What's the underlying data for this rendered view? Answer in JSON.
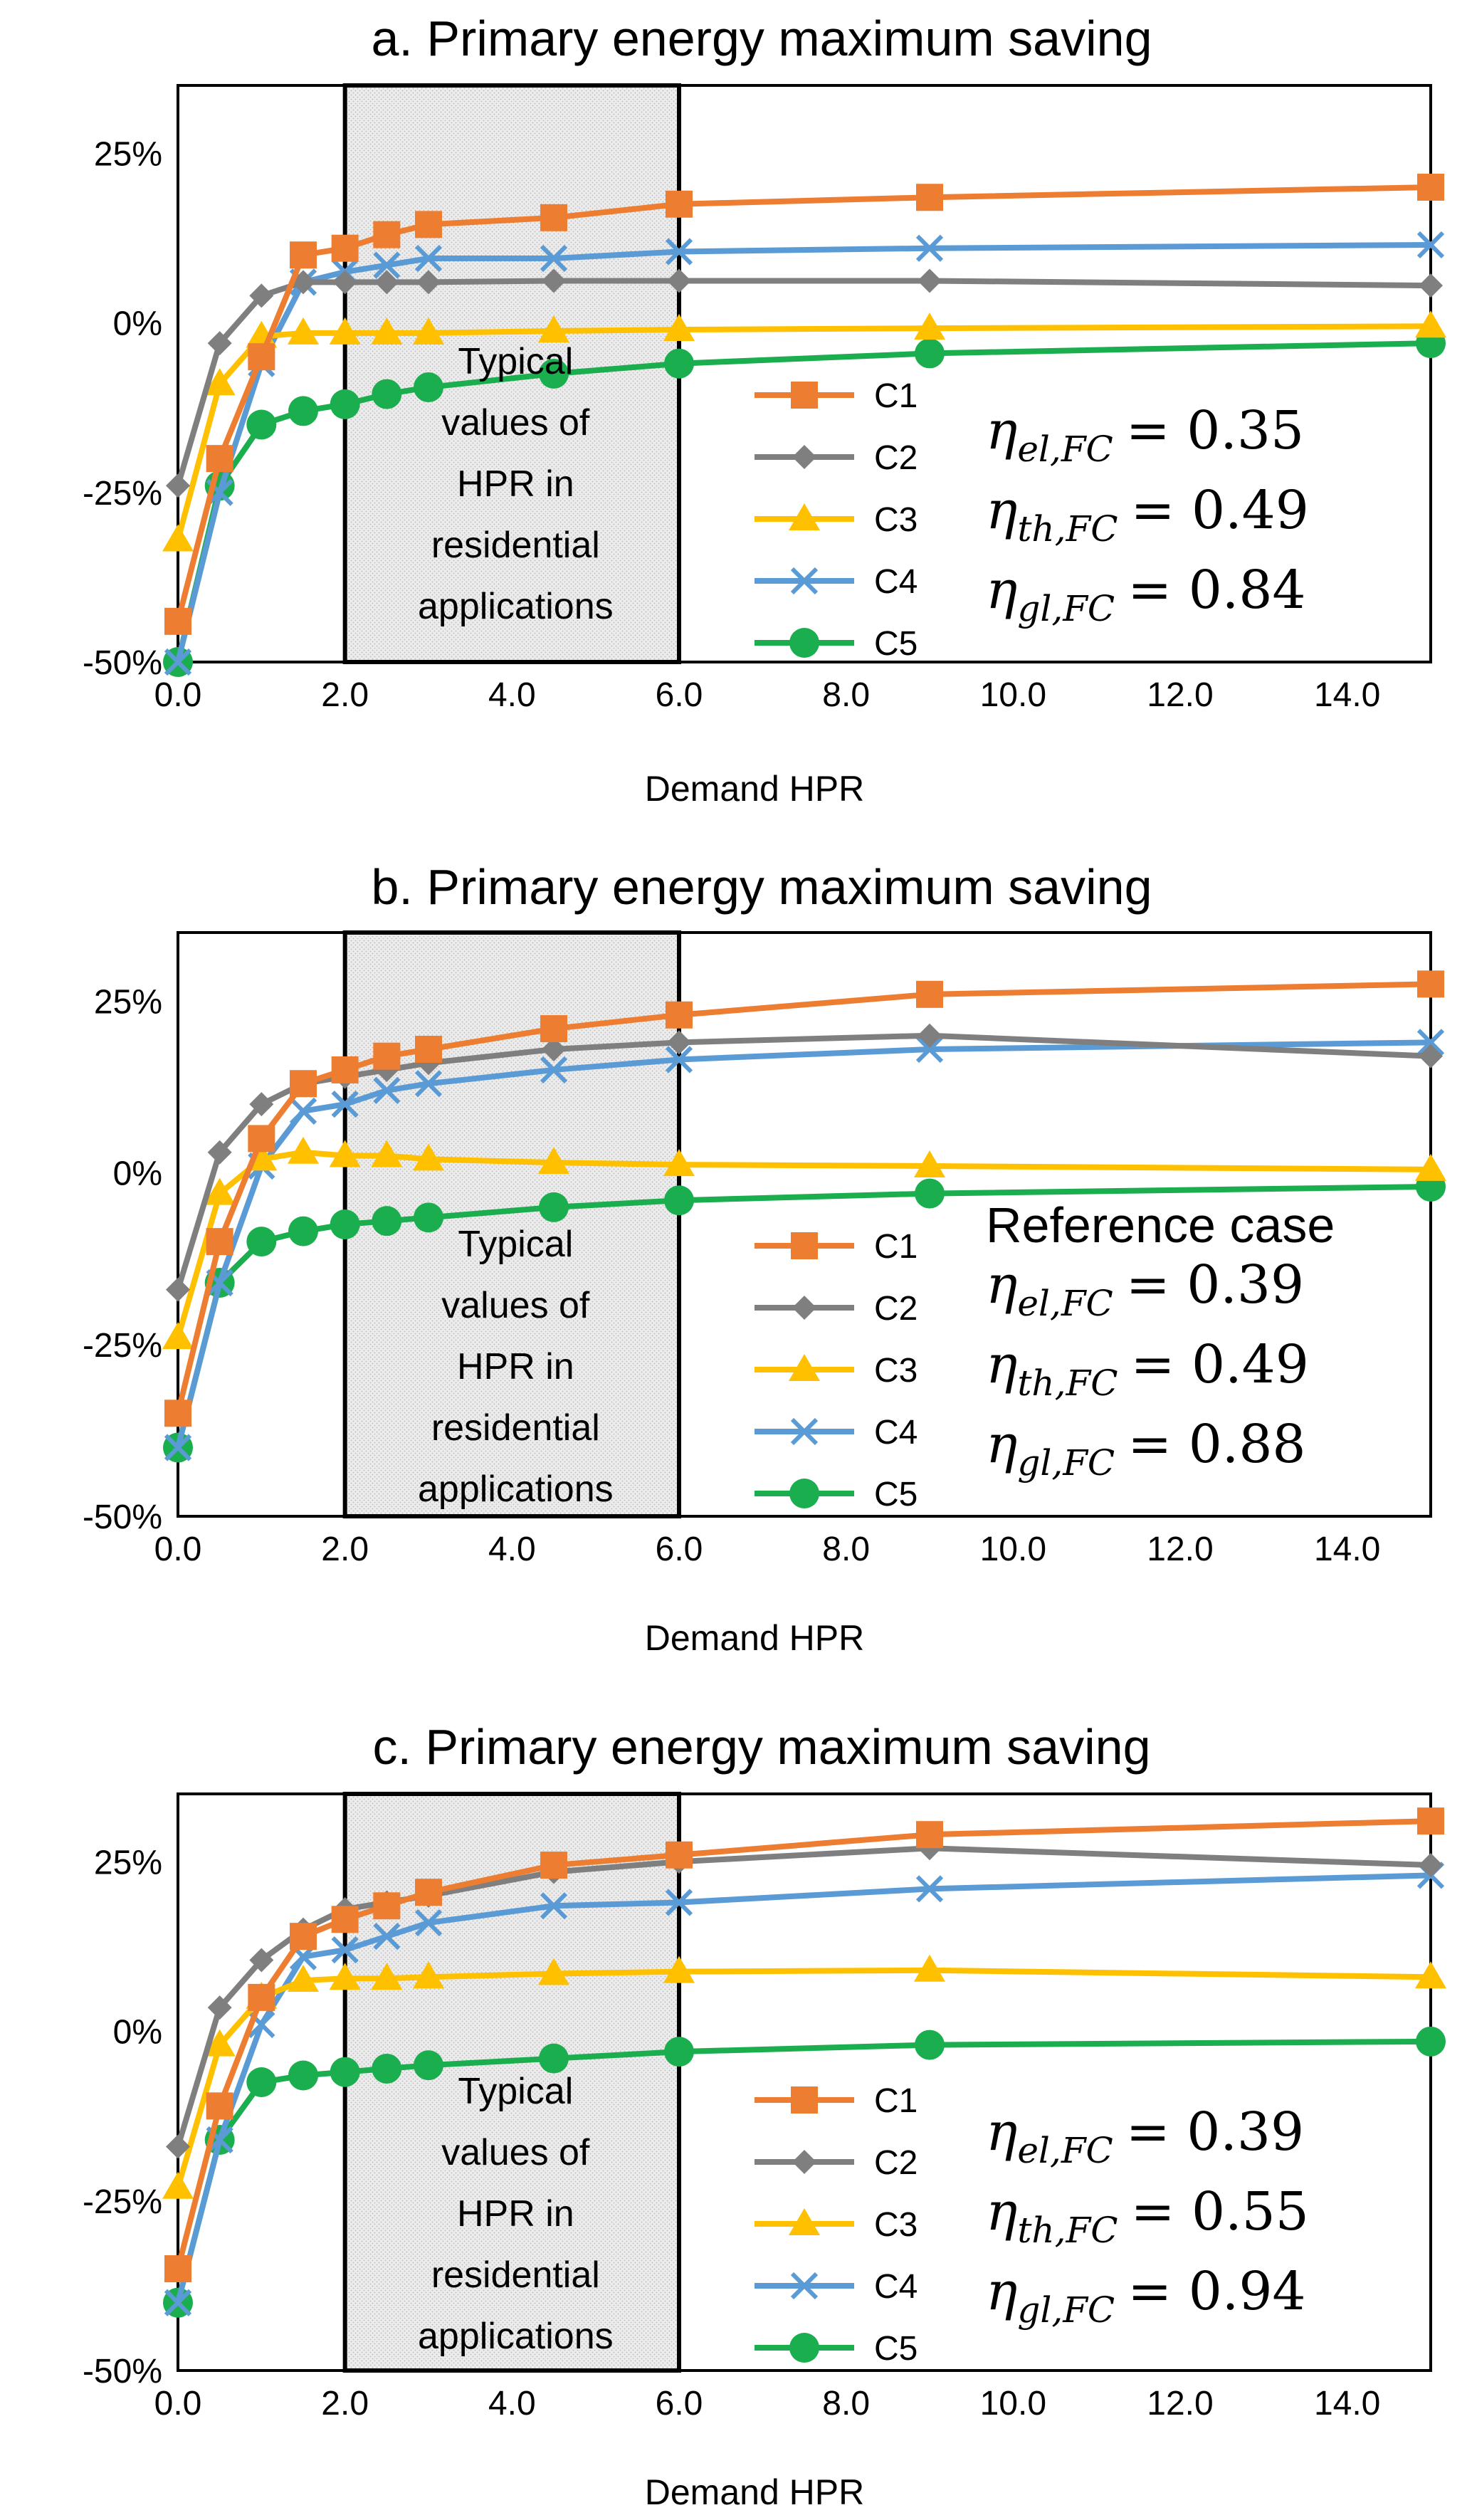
{
  "chart_data": [
    {
      "type": "line",
      "title": "a. Primary energy maximum saving",
      "xlabel": "Demand HPR",
      "ylabel": "",
      "xlim": [
        0,
        15
      ],
      "ylim": [
        -0.5,
        0.35
      ],
      "x_ticks": [
        "0.0",
        "2.0",
        "4.0",
        "6.0",
        "8.0",
        "10.0",
        "12.0",
        "14.0"
      ],
      "y_ticks": [
        "25%",
        "0%",
        "-25%",
        "-50%"
      ],
      "highlight": {
        "x_range": [
          2,
          6
        ],
        "text": [
          "Typical",
          "values of",
          "HPR in",
          "residential",
          "applications"
        ]
      },
      "note": "",
      "efficiencies": [
        {
          "symbol": "η",
          "subscript": "el,FC",
          "value": "= 0.35"
        },
        {
          "symbol": "η",
          "subscript": "th,FC",
          "value": "= 0.49"
        },
        {
          "symbol": "η",
          "subscript": "gl,FC",
          "value": "= 0.84"
        }
      ],
      "x": [
        0,
        0.5,
        1,
        1.5,
        2,
        2.5,
        3,
        4.5,
        6,
        9,
        15
      ],
      "series": [
        {
          "name": "C1",
          "color": "#ED7D31",
          "marker": "square",
          "values": [
            -0.44,
            -0.2,
            -0.05,
            0.1,
            0.11,
            0.13,
            0.145,
            0.155,
            0.175,
            0.185,
            0.2
          ]
        },
        {
          "name": "C2",
          "color": "#7F7F7F",
          "marker": "diamond",
          "values": [
            -0.24,
            -0.03,
            0.04,
            0.06,
            0.06,
            0.06,
            0.06,
            0.062,
            0.062,
            0.062,
            0.055
          ]
        },
        {
          "name": "C3",
          "color": "#FFC000",
          "marker": "triangle",
          "values": [
            -0.32,
            -0.09,
            -0.02,
            -0.015,
            -0.015,
            -0.015,
            -0.015,
            -0.012,
            -0.01,
            -0.008,
            -0.005
          ]
        },
        {
          "name": "C4",
          "color": "#5B9BD5",
          "marker": "x",
          "values": [
            -0.5,
            -0.25,
            -0.06,
            0.06,
            0.075,
            0.085,
            0.095,
            0.095,
            0.105,
            0.11,
            0.115
          ]
        },
        {
          "name": "C5",
          "color": "#1BAE4E",
          "marker": "circle",
          "values": [
            -0.5,
            -0.24,
            -0.15,
            -0.13,
            -0.12,
            -0.105,
            -0.095,
            -0.075,
            -0.06,
            -0.045,
            -0.03
          ]
        }
      ]
    },
    {
      "type": "line",
      "title": "b. Primary energy maximum saving",
      "xlabel": "Demand HPR",
      "ylabel": "",
      "xlim": [
        0,
        15
      ],
      "ylim": [
        -0.5,
        0.35
      ],
      "x_ticks": [
        "0.0",
        "2.0",
        "4.0",
        "6.0",
        "8.0",
        "10.0",
        "12.0",
        "14.0"
      ],
      "y_ticks": [
        "25%",
        "0%",
        "-25%",
        "-50%"
      ],
      "highlight": {
        "x_range": [
          2,
          6
        ],
        "text": [
          "Typical",
          "values of",
          "HPR in",
          "residential",
          "applications"
        ]
      },
      "note": "Reference case",
      "efficiencies": [
        {
          "symbol": "η",
          "subscript": "el,FC",
          "value": "= 0.39"
        },
        {
          "symbol": "η",
          "subscript": "th,FC",
          "value": "= 0.49"
        },
        {
          "symbol": "η",
          "subscript": "gl,FC",
          "value": "= 0.88"
        }
      ],
      "x": [
        0,
        0.5,
        1,
        1.5,
        2,
        2.5,
        3,
        4.5,
        6,
        9,
        15
      ],
      "series": [
        {
          "name": "C1",
          "color": "#ED7D31",
          "marker": "square",
          "values": [
            -0.35,
            -0.1,
            0.05,
            0.13,
            0.15,
            0.17,
            0.18,
            0.21,
            0.23,
            0.26,
            0.275
          ]
        },
        {
          "name": "C2",
          "color": "#7F7F7F",
          "marker": "diamond",
          "values": [
            -0.17,
            0.03,
            0.1,
            0.13,
            0.14,
            0.15,
            0.16,
            0.18,
            0.19,
            0.2,
            0.17
          ]
        },
        {
          "name": "C3",
          "color": "#FFC000",
          "marker": "triangle",
          "values": [
            -0.24,
            -0.03,
            0.02,
            0.03,
            0.025,
            0.025,
            0.02,
            0.015,
            0.012,
            0.01,
            0.005
          ]
        },
        {
          "name": "C4",
          "color": "#5B9BD5",
          "marker": "x",
          "values": [
            -0.4,
            -0.16,
            0.01,
            0.09,
            0.1,
            0.12,
            0.13,
            0.15,
            0.165,
            0.18,
            0.19
          ]
        },
        {
          "name": "C5",
          "color": "#1BAE4E",
          "marker": "circle",
          "values": [
            -0.4,
            -0.16,
            -0.1,
            -0.085,
            -0.075,
            -0.07,
            -0.065,
            -0.05,
            -0.04,
            -0.03,
            -0.02
          ]
        }
      ]
    },
    {
      "type": "line",
      "title": "c. Primary energy maximum saving",
      "xlabel": "Demand HPR",
      "ylabel": "",
      "xlim": [
        0,
        15
      ],
      "ylim": [
        -0.5,
        0.35
      ],
      "x_ticks": [
        "0.0",
        "2.0",
        "4.0",
        "6.0",
        "8.0",
        "10.0",
        "12.0",
        "14.0"
      ],
      "y_ticks": [
        "25%",
        "0%",
        "-25%",
        "-50%"
      ],
      "highlight": {
        "x_range": [
          2,
          6
        ],
        "text": [
          "Typical",
          "values of",
          "HPR in",
          "residential",
          "applications"
        ]
      },
      "note": "",
      "efficiencies": [
        {
          "symbol": "η",
          "subscript": "el,FC",
          "value": "= 0.39"
        },
        {
          "symbol": "η",
          "subscript": "th,FC",
          "value": "= 0.55"
        },
        {
          "symbol": "η",
          "subscript": "gl,FC",
          "value": "= 0.94"
        }
      ],
      "x": [
        0,
        0.5,
        1,
        1.5,
        2,
        2.5,
        3,
        4.5,
        6,
        9,
        15
      ],
      "series": [
        {
          "name": "C1",
          "color": "#ED7D31",
          "marker": "square",
          "values": [
            -0.35,
            -0.11,
            0.05,
            0.14,
            0.165,
            0.185,
            0.205,
            0.245,
            0.26,
            0.29,
            0.31
          ]
        },
        {
          "name": "C2",
          "color": "#7F7F7F",
          "marker": "diamond",
          "values": [
            -0.17,
            0.035,
            0.105,
            0.15,
            0.18,
            0.19,
            0.2,
            0.235,
            0.25,
            0.27,
            0.245
          ]
        },
        {
          "name": "C3",
          "color": "#FFC000",
          "marker": "triangle",
          "values": [
            -0.23,
            -0.02,
            0.05,
            0.075,
            0.078,
            0.078,
            0.08,
            0.085,
            0.088,
            0.09,
            0.08
          ]
        },
        {
          "name": "C4",
          "color": "#5B9BD5",
          "marker": "x",
          "values": [
            -0.4,
            -0.16,
            0.01,
            0.11,
            0.12,
            0.14,
            0.16,
            0.185,
            0.19,
            0.21,
            0.23
          ]
        },
        {
          "name": "C5",
          "color": "#1BAE4E",
          "marker": "circle",
          "values": [
            -0.4,
            -0.16,
            -0.075,
            -0.065,
            -0.06,
            -0.055,
            -0.05,
            -0.04,
            -0.03,
            -0.02,
            -0.015
          ]
        }
      ]
    }
  ]
}
